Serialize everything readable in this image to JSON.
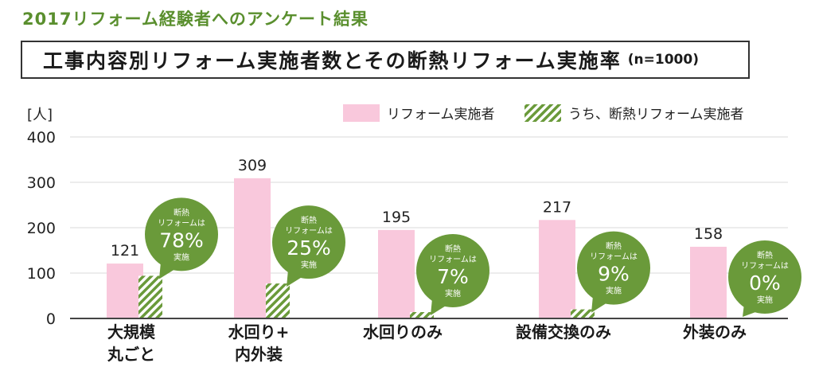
{
  "header": {
    "text": "2017リフォーム経験者へのアンケート結果"
  },
  "title": {
    "main": "工事内容別リフォーム実施者数とその断熱リフォーム実施率",
    "sub": "(n=1000)"
  },
  "colors": {
    "pink": "#f9c8dc",
    "green": "#6a9a3a",
    "header_green": "#5a8f2e",
    "axis": "#444444"
  },
  "chart_data": {
    "type": "bar",
    "ylabel": "[人]",
    "ylim": [
      0,
      400
    ],
    "yticks": [
      "0",
      "100",
      "200",
      "300",
      "400"
    ],
    "categories": [
      {
        "line1": "大規模",
        "line2": "丸ごと"
      },
      {
        "line1": "水回り+",
        "line2": "内外装"
      },
      {
        "line1": "水回りのみ",
        "line2": ""
      },
      {
        "line1": "設備交換のみ",
        "line2": ""
      },
      {
        "line1": "外装のみ",
        "line2": ""
      }
    ],
    "series": [
      {
        "name": "リフォーム実施者",
        "values": [
          121,
          309,
          195,
          217,
          158
        ],
        "value_labels": [
          "121",
          "309",
          "195",
          "217",
          "158"
        ]
      },
      {
        "name": "うち、断熱リフォーム実施者",
        "values": [
          94,
          77,
          14,
          20,
          0
        ]
      }
    ],
    "callouts": [
      {
        "line1": "断熱",
        "line2": "リフォームは",
        "pct": "78%",
        "line3": "実施"
      },
      {
        "line1": "断熱",
        "line2": "リフォームは",
        "pct": "25%",
        "line3": "実施"
      },
      {
        "line1": "断熱",
        "line2": "リフォームは",
        "pct": "7%",
        "line3": "実施"
      },
      {
        "line1": "断熱",
        "line2": "リフォームは",
        "pct": "9%",
        "line3": "実施"
      },
      {
        "line1": "断熱",
        "line2": "リフォームは",
        "pct": "0%",
        "line3": "実施"
      }
    ],
    "legend": [
      "リフォーム実施者",
      "うち、断熱リフォーム実施者"
    ]
  }
}
